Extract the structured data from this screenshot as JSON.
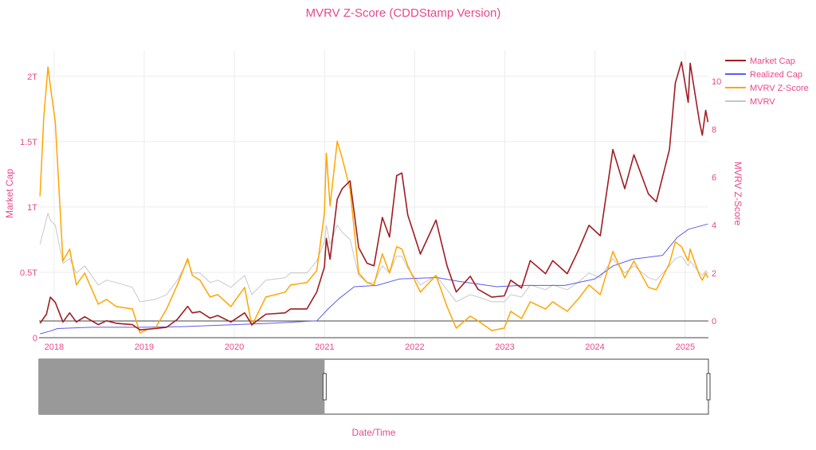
{
  "chart_data": {
    "type": "line",
    "title": "MVRV Z-Score (CDDStamp Version)",
    "xlabel": "Date/Time",
    "ylabel_left": "Market Cap",
    "ylabel_right": "MVRV Z-Score",
    "x_tick_labels": [
      "2018",
      "2019",
      "2020",
      "2021",
      "2022",
      "2023",
      "2024",
      "2025"
    ],
    "y_left_tick_labels": [
      "0",
      "0.5T",
      "1T",
      "1.5T",
      "2T"
    ],
    "y_right_tick_labels": [
      "0",
      "2",
      "4",
      "6",
      "8",
      "10"
    ],
    "x_range": [
      "2017-11-01",
      "2025-04-05"
    ],
    "y_left_range": [
      0,
      2.2
    ],
    "y_left_unit": "trillion USD",
    "y_right_range": [
      -0.7,
      11.3
    ],
    "grid": true,
    "legend_position": "top-right",
    "range_slider": true,
    "colors": {
      "market_cap": "#a01c22",
      "realized_cap": "#5b5bf0",
      "mvrv_z": "#ffa500",
      "mvrv": "#c8c8c8",
      "text": "#e8488a"
    },
    "series": [
      {
        "name": "Market Cap",
        "axis": "left",
        "points": [
          [
            "2017-11-05",
            0.11
          ],
          [
            "2017-12-01",
            0.18
          ],
          [
            "2017-12-17",
            0.31
          ],
          [
            "2018-01-06",
            0.27
          ],
          [
            "2018-02-06",
            0.12
          ],
          [
            "2018-03-05",
            0.19
          ],
          [
            "2018-04-01",
            0.12
          ],
          [
            "2018-05-05",
            0.16
          ],
          [
            "2018-06-29",
            0.1
          ],
          [
            "2018-08-01",
            0.13
          ],
          [
            "2018-09-10",
            0.11
          ],
          [
            "2018-11-14",
            0.1
          ],
          [
            "2018-12-15",
            0.06
          ],
          [
            "2019-01-15",
            0.065
          ],
          [
            "2019-02-15",
            0.07
          ],
          [
            "2019-04-02",
            0.08
          ],
          [
            "2019-05-15",
            0.14
          ],
          [
            "2019-06-26",
            0.24
          ],
          [
            "2019-07-15",
            0.19
          ],
          [
            "2019-08-15",
            0.2
          ],
          [
            "2019-09-25",
            0.15
          ],
          [
            "2019-10-26",
            0.17
          ],
          [
            "2019-12-18",
            0.12
          ],
          [
            "2020-02-12",
            0.19
          ],
          [
            "2020-03-12",
            0.1
          ],
          [
            "2020-05-08",
            0.18
          ],
          [
            "2020-07-25",
            0.19
          ],
          [
            "2020-08-16",
            0.22
          ],
          [
            "2020-10-21",
            0.22
          ],
          [
            "2020-11-30",
            0.35
          ],
          [
            "2020-12-31",
            0.54
          ],
          [
            "2021-01-08",
            0.76
          ],
          [
            "2021-01-23",
            0.6
          ],
          [
            "2021-02-21",
            1.06
          ],
          [
            "2021-03-13",
            1.14
          ],
          [
            "2021-04-14",
            1.2
          ],
          [
            "2021-05-19",
            0.69
          ],
          [
            "2021-06-22",
            0.57
          ],
          [
            "2021-07-20",
            0.55
          ],
          [
            "2021-08-23",
            0.92
          ],
          [
            "2021-09-21",
            0.77
          ],
          [
            "2021-10-20",
            1.24
          ],
          [
            "2021-11-10",
            1.26
          ],
          [
            "2021-12-04",
            0.94
          ],
          [
            "2022-01-24",
            0.64
          ],
          [
            "2022-03-28",
            0.9
          ],
          [
            "2022-05-12",
            0.55
          ],
          [
            "2022-06-18",
            0.35
          ],
          [
            "2022-08-14",
            0.47
          ],
          [
            "2022-09-15",
            0.37
          ],
          [
            "2022-11-09",
            0.31
          ],
          [
            "2022-12-30",
            0.32
          ],
          [
            "2023-01-25",
            0.44
          ],
          [
            "2023-03-10",
            0.38
          ],
          [
            "2023-04-14",
            0.59
          ],
          [
            "2023-06-15",
            0.49
          ],
          [
            "2023-07-14",
            0.59
          ],
          [
            "2023-09-11",
            0.49
          ],
          [
            "2023-10-24",
            0.66
          ],
          [
            "2023-12-08",
            0.86
          ],
          [
            "2024-01-23",
            0.78
          ],
          [
            "2024-03-14",
            1.44
          ],
          [
            "2024-05-01",
            1.14
          ],
          [
            "2024-06-07",
            1.4
          ],
          [
            "2024-08-05",
            1.1
          ],
          [
            "2024-09-06",
            1.04
          ],
          [
            "2024-10-29",
            1.44
          ],
          [
            "2024-11-22",
            1.95
          ],
          [
            "2024-12-17",
            2.11
          ],
          [
            "2025-01-13",
            1.8
          ],
          [
            "2025-01-21",
            2.1
          ],
          [
            "2025-02-28",
            1.65
          ],
          [
            "2025-03-11",
            1.55
          ],
          [
            "2025-03-25",
            1.74
          ],
          [
            "2025-04-03",
            1.65
          ]
        ]
      },
      {
        "name": "Realized Cap",
        "axis": "left",
        "points": [
          [
            "2017-11-05",
            0.03
          ],
          [
            "2017-12-15",
            0.05
          ],
          [
            "2018-01-15",
            0.07
          ],
          [
            "2018-06-01",
            0.08
          ],
          [
            "2019-01-01",
            0.08
          ],
          [
            "2019-06-01",
            0.085
          ],
          [
            "2020-01-01",
            0.1
          ],
          [
            "2020-06-01",
            0.11
          ],
          [
            "2020-12-01",
            0.13
          ],
          [
            "2021-01-15",
            0.22
          ],
          [
            "2021-03-01",
            0.3
          ],
          [
            "2021-05-01",
            0.39
          ],
          [
            "2021-08-01",
            0.4
          ],
          [
            "2021-11-01",
            0.45
          ],
          [
            "2022-04-01",
            0.46
          ],
          [
            "2022-07-01",
            0.43
          ],
          [
            "2022-12-01",
            0.39
          ],
          [
            "2023-03-01",
            0.4
          ],
          [
            "2023-09-01",
            0.4
          ],
          [
            "2024-01-01",
            0.45
          ],
          [
            "2024-03-15",
            0.55
          ],
          [
            "2024-06-01",
            0.6
          ],
          [
            "2024-10-01",
            0.63
          ],
          [
            "2024-12-01",
            0.77
          ],
          [
            "2025-01-15",
            0.83
          ],
          [
            "2025-04-03",
            0.87
          ]
        ]
      },
      {
        "name": "MVRV Z-Score",
        "axis": "right",
        "points": [
          [
            "2017-11-05",
            5.2
          ],
          [
            "2017-11-20",
            8.5
          ],
          [
            "2017-12-07",
            10.6
          ],
          [
            "2017-12-17",
            9.8
          ],
          [
            "2018-01-06",
            8.3
          ],
          [
            "2018-02-06",
            2.5
          ],
          [
            "2018-03-05",
            3.0
          ],
          [
            "2018-04-01",
            1.5
          ],
          [
            "2018-05-05",
            2.0
          ],
          [
            "2018-06-29",
            0.7
          ],
          [
            "2018-08-01",
            0.9
          ],
          [
            "2018-09-10",
            0.6
          ],
          [
            "2018-11-14",
            0.5
          ],
          [
            "2018-12-15",
            -0.5
          ],
          [
            "2019-01-15",
            -0.35
          ],
          [
            "2019-02-15",
            -0.3
          ],
          [
            "2019-04-02",
            0.5
          ],
          [
            "2019-05-15",
            1.5
          ],
          [
            "2019-06-26",
            2.6
          ],
          [
            "2019-07-15",
            1.9
          ],
          [
            "2019-08-15",
            1.7
          ],
          [
            "2019-09-25",
            1.0
          ],
          [
            "2019-10-26",
            1.1
          ],
          [
            "2019-12-18",
            0.6
          ],
          [
            "2020-02-12",
            1.4
          ],
          [
            "2020-03-12",
            -0.2
          ],
          [
            "2020-05-08",
            1.0
          ],
          [
            "2020-07-25",
            1.2
          ],
          [
            "2020-08-16",
            1.5
          ],
          [
            "2020-10-21",
            1.6
          ],
          [
            "2020-11-30",
            2.1
          ],
          [
            "2020-12-31",
            4.5
          ],
          [
            "2021-01-08",
            7.0
          ],
          [
            "2021-01-23",
            4.8
          ],
          [
            "2021-02-21",
            7.5
          ],
          [
            "2021-03-13",
            6.8
          ],
          [
            "2021-04-14",
            5.5
          ],
          [
            "2021-05-19",
            2.0
          ],
          [
            "2021-06-22",
            1.6
          ],
          [
            "2021-07-20",
            1.5
          ],
          [
            "2021-08-23",
            2.8
          ],
          [
            "2021-09-21",
            2.0
          ],
          [
            "2021-10-20",
            3.1
          ],
          [
            "2021-11-10",
            3.0
          ],
          [
            "2021-12-04",
            2.3
          ],
          [
            "2022-01-24",
            1.2
          ],
          [
            "2022-03-28",
            1.9
          ],
          [
            "2022-05-12",
            0.6
          ],
          [
            "2022-06-18",
            -0.3
          ],
          [
            "2022-08-14",
            0.2
          ],
          [
            "2022-09-15",
            0.0
          ],
          [
            "2022-11-09",
            -0.4
          ],
          [
            "2022-12-30",
            -0.3
          ],
          [
            "2023-01-25",
            0.4
          ],
          [
            "2023-03-10",
            0.1
          ],
          [
            "2023-04-14",
            0.8
          ],
          [
            "2023-06-15",
            0.5
          ],
          [
            "2023-07-14",
            0.8
          ],
          [
            "2023-09-11",
            0.4
          ],
          [
            "2023-10-24",
            0.9
          ],
          [
            "2023-12-08",
            1.5
          ],
          [
            "2024-01-23",
            1.1
          ],
          [
            "2024-03-14",
            2.9
          ],
          [
            "2024-05-01",
            1.8
          ],
          [
            "2024-06-07",
            2.5
          ],
          [
            "2024-08-05",
            1.4
          ],
          [
            "2024-09-06",
            1.3
          ],
          [
            "2024-10-29",
            2.4
          ],
          [
            "2024-11-22",
            3.3
          ],
          [
            "2024-12-17",
            3.1
          ],
          [
            "2025-01-13",
            2.5
          ],
          [
            "2025-01-21",
            3.0
          ],
          [
            "2025-02-28",
            1.9
          ],
          [
            "2025-03-11",
            1.7
          ],
          [
            "2025-03-25",
            2.0
          ],
          [
            "2025-04-03",
            1.8
          ]
        ]
      },
      {
        "name": "MVRV",
        "axis": "right",
        "points": [
          [
            "2017-11-05",
            3.2
          ],
          [
            "2017-11-20",
            3.8
          ],
          [
            "2017-12-07",
            4.5
          ],
          [
            "2017-12-17",
            4.2
          ],
          [
            "2018-01-06",
            4.0
          ],
          [
            "2018-02-06",
            2.4
          ],
          [
            "2018-03-05",
            2.6
          ],
          [
            "2018-04-01",
            2.0
          ],
          [
            "2018-05-05",
            2.3
          ],
          [
            "2018-06-29",
            1.5
          ],
          [
            "2018-08-01",
            1.7
          ],
          [
            "2018-09-10",
            1.6
          ],
          [
            "2018-11-14",
            1.4
          ],
          [
            "2018-12-15",
            0.8
          ],
          [
            "2019-01-15",
            0.85
          ],
          [
            "2019-02-15",
            0.9
          ],
          [
            "2019-04-02",
            1.1
          ],
          [
            "2019-05-15",
            1.7
          ],
          [
            "2019-06-26",
            2.5
          ],
          [
            "2019-07-15",
            2.0
          ],
          [
            "2019-08-15",
            2.0
          ],
          [
            "2019-09-25",
            1.6
          ],
          [
            "2019-10-26",
            1.7
          ],
          [
            "2019-12-18",
            1.4
          ],
          [
            "2020-02-12",
            1.9
          ],
          [
            "2020-03-12",
            1.1
          ],
          [
            "2020-05-08",
            1.7
          ],
          [
            "2020-07-25",
            1.8
          ],
          [
            "2020-08-16",
            2.0
          ],
          [
            "2020-10-21",
            2.0
          ],
          [
            "2020-11-30",
            2.5
          ],
          [
            "2020-12-31",
            3.3
          ],
          [
            "2021-01-08",
            4.0
          ],
          [
            "2021-01-23",
            3.2
          ],
          [
            "2021-02-21",
            4.0
          ],
          [
            "2021-03-13",
            3.7
          ],
          [
            "2021-04-14",
            3.4
          ],
          [
            "2021-05-19",
            1.9
          ],
          [
            "2021-06-22",
            1.6
          ],
          [
            "2021-07-20",
            1.6
          ],
          [
            "2021-08-23",
            2.3
          ],
          [
            "2021-09-21",
            2.0
          ],
          [
            "2021-10-20",
            2.7
          ],
          [
            "2021-11-10",
            2.7
          ],
          [
            "2021-12-04",
            2.2
          ],
          [
            "2022-01-24",
            1.5
          ],
          [
            "2022-03-28",
            1.9
          ],
          [
            "2022-05-12",
            1.3
          ],
          [
            "2022-06-18",
            0.8
          ],
          [
            "2022-08-14",
            1.1
          ],
          [
            "2022-09-15",
            1.0
          ],
          [
            "2022-11-09",
            0.8
          ],
          [
            "2022-12-30",
            0.8
          ],
          [
            "2023-01-25",
            1.1
          ],
          [
            "2023-03-10",
            1.0
          ],
          [
            "2023-04-14",
            1.5
          ],
          [
            "2023-06-15",
            1.3
          ],
          [
            "2023-07-14",
            1.5
          ],
          [
            "2023-09-11",
            1.3
          ],
          [
            "2023-10-24",
            1.6
          ],
          [
            "2023-12-08",
            2.0
          ],
          [
            "2024-01-23",
            1.8
          ],
          [
            "2024-03-14",
            2.6
          ],
          [
            "2024-05-01",
            2.0
          ],
          [
            "2024-06-07",
            2.3
          ],
          [
            "2024-08-05",
            1.8
          ],
          [
            "2024-09-06",
            1.7
          ],
          [
            "2024-10-29",
            2.3
          ],
          [
            "2024-11-22",
            2.6
          ],
          [
            "2024-12-17",
            2.7
          ],
          [
            "2025-01-13",
            2.3
          ],
          [
            "2025-01-21",
            2.5
          ],
          [
            "2025-02-28",
            2.0
          ],
          [
            "2025-03-11",
            1.9
          ],
          [
            "2025-03-25",
            2.1
          ],
          [
            "2025-04-03",
            2.0
          ]
        ]
      }
    ],
    "range_selection": [
      "2017-11-01",
      "2021-01-01"
    ]
  }
}
